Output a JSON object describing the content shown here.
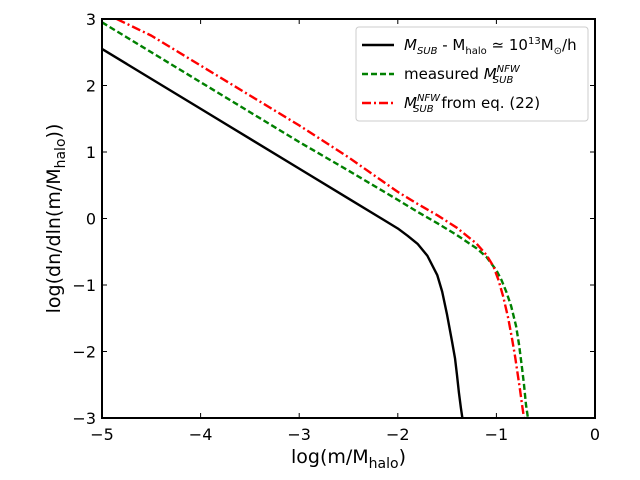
{
  "chart_data": {
    "type": "line",
    "title": "",
    "xlabel": "log(m/M_halo)",
    "ylabel": "log(dn/dln(m/M_halo))",
    "xlim": [
      -5,
      0
    ],
    "ylim": [
      -3,
      3
    ],
    "x_ticks": [
      -5,
      -4,
      -3,
      -2,
      -1,
      0
    ],
    "x_tick_labels": [
      "−5",
      "−4",
      "−3",
      "−2",
      "−1",
      "0"
    ],
    "y_ticks": [
      -3,
      -2,
      -1,
      0,
      1,
      2,
      3
    ],
    "y_tick_labels": [
      "−3",
      "−2",
      "−1",
      "0",
      "1",
      "2",
      "3"
    ],
    "grid": false,
    "legend_position": "top-right",
    "series": [
      {
        "name": "M_SUB - M_halo ≃ 10^13 M⊙/h",
        "legend": {
          "main": "M",
          "sub": "SUB",
          "sup": "",
          "text": " - M",
          "text_sub": "halo",
          "text2": " ≃ 10",
          "text2_sup": "13",
          "text3": "M",
          "text3_sub": "⊙",
          "text4": "/h"
        },
        "color": "#000000",
        "dash": "solid",
        "x": [
          -5.0,
          -4.5,
          -4.0,
          -3.5,
          -3.0,
          -2.5,
          -2.2,
          -2.0,
          -1.9,
          -1.8,
          -1.7,
          -1.6,
          -1.55,
          -1.5,
          -1.45,
          -1.42,
          -1.4,
          -1.38,
          -1.36,
          -1.345
        ],
        "y": [
          2.55,
          2.1,
          1.65,
          1.2,
          0.75,
          0.3,
          0.03,
          -0.15,
          -0.26,
          -0.38,
          -0.56,
          -0.85,
          -1.1,
          -1.45,
          -1.85,
          -2.1,
          -2.35,
          -2.62,
          -2.85,
          -3.0
        ]
      },
      {
        "name": "measured M_SUB^NFW",
        "legend": {
          "prefix": "measured ",
          "main": "M",
          "sub": "SUB",
          "sup": "NFW",
          "text": ""
        },
        "color": "#008000",
        "dash": "dashed",
        "x": [
          -5.0,
          -4.5,
          -4.0,
          -3.5,
          -3.0,
          -2.5,
          -2.0,
          -1.8,
          -1.6,
          -1.4,
          -1.2,
          -1.1,
          -1.0,
          -0.95,
          -0.9,
          -0.85,
          -0.8,
          -0.77,
          -0.74,
          -0.72,
          -0.7,
          -0.68
        ],
        "y": [
          2.95,
          2.5,
          2.05,
          1.6,
          1.15,
          0.72,
          0.28,
          0.1,
          -0.07,
          -0.25,
          -0.45,
          -0.58,
          -0.78,
          -0.92,
          -1.1,
          -1.32,
          -1.62,
          -1.9,
          -2.25,
          -2.5,
          -2.8,
          -3.0
        ]
      },
      {
        "name": "M_SUB^NFW from eq. (22)",
        "legend": {
          "prefix": "",
          "main": "M",
          "sub": "SUB",
          "sup": "NFW",
          "text": " from eq. (22)"
        },
        "color": "#ff0000",
        "dash": "dashdot",
        "x": [
          -4.85,
          -4.5,
          -4.0,
          -3.5,
          -3.0,
          -2.5,
          -2.0,
          -1.8,
          -1.6,
          -1.4,
          -1.2,
          -1.1,
          -1.03,
          -0.98,
          -0.93,
          -0.88,
          -0.84,
          -0.81,
          -0.78,
          -0.76,
          -0.74,
          -0.72
        ],
        "y": [
          3.0,
          2.75,
          2.3,
          1.85,
          1.4,
          0.92,
          0.4,
          0.22,
          0.05,
          -0.14,
          -0.38,
          -0.55,
          -0.72,
          -0.92,
          -1.18,
          -1.5,
          -1.82,
          -2.08,
          -2.38,
          -2.58,
          -2.8,
          -3.0
        ]
      }
    ]
  }
}
